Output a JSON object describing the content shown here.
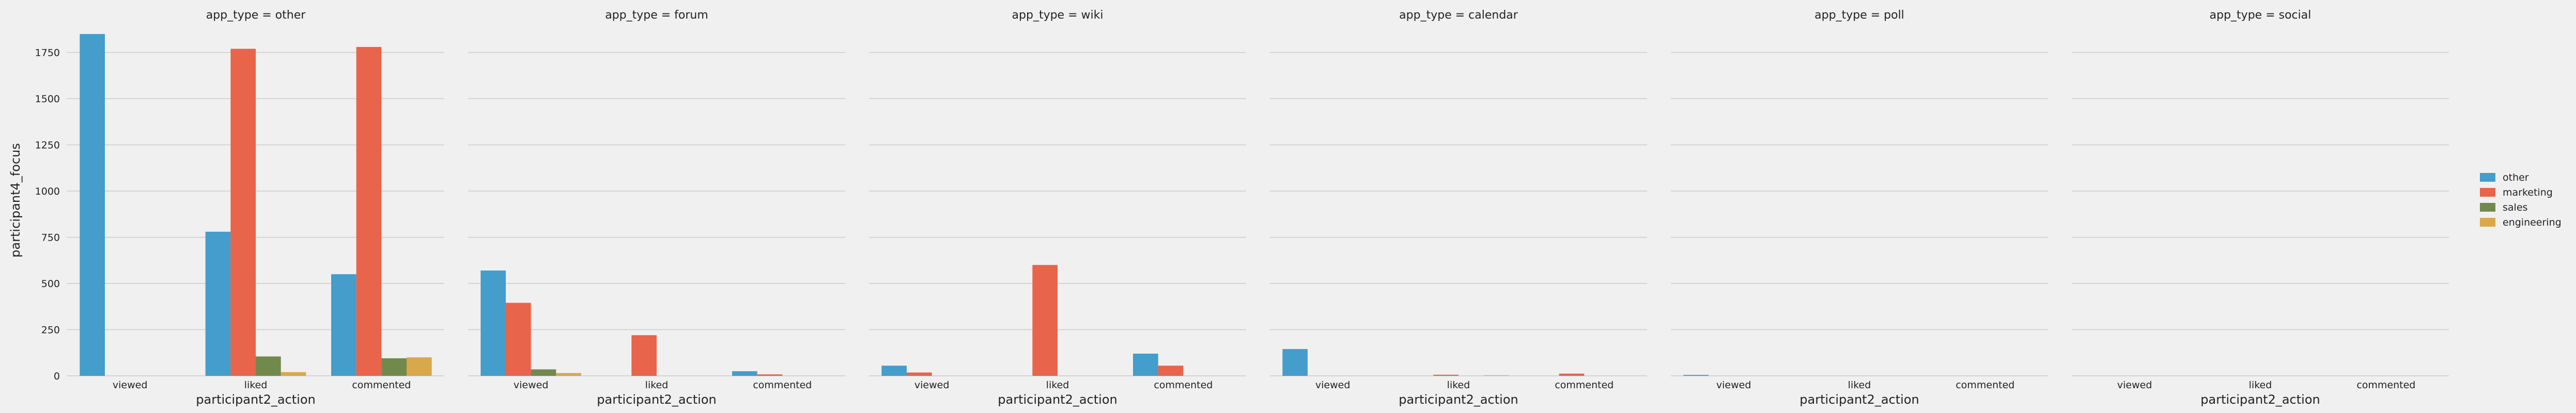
{
  "chart_data": {
    "type": "bar",
    "facet_variable": "app_type",
    "facets": [
      {
        "title": "app_type = other",
        "series": [
          [
            1850,
            780,
            550
          ],
          [
            0,
            1770,
            1780
          ],
          [
            0,
            105,
            95
          ],
          [
            0,
            20,
            100
          ]
        ]
      },
      {
        "title": "app_type = forum",
        "series": [
          [
            570,
            0,
            25
          ],
          [
            395,
            220,
            8
          ],
          [
            35,
            0,
            0
          ],
          [
            15,
            0,
            0
          ]
        ]
      },
      {
        "title": "app_type = wiki",
        "series": [
          [
            55,
            0,
            120
          ],
          [
            18,
            600,
            55
          ],
          [
            0,
            0,
            0
          ],
          [
            0,
            0,
            0
          ]
        ]
      },
      {
        "title": "app_type = calendar",
        "series": [
          [
            145,
            0,
            0
          ],
          [
            0,
            6,
            12
          ],
          [
            0,
            0,
            0
          ],
          [
            0,
            3,
            0
          ]
        ]
      },
      {
        "title": "app_type = poll",
        "series": [
          [
            5,
            0,
            0
          ],
          [
            0,
            0,
            0
          ],
          [
            0,
            0,
            0
          ],
          [
            0,
            0,
            0
          ]
        ]
      },
      {
        "title": "app_type = social",
        "series": [
          [
            0,
            0,
            0
          ],
          [
            0,
            0,
            0
          ],
          [
            0,
            0,
            0
          ],
          [
            0,
            0,
            0
          ]
        ]
      }
    ],
    "categories": [
      "viewed",
      "liked",
      "commented"
    ],
    "series_names": [
      "other",
      "marketing",
      "sales",
      "engineering"
    ],
    "series_colors": [
      "#449dcb",
      "#e8644a",
      "#72894e",
      "#d8a84b"
    ],
    "xlabel": "participant2_action",
    "ylabel": "participant4_focus",
    "ylim": [
      0,
      1900
    ],
    "yticks": [
      0,
      250,
      500,
      750,
      1000,
      1250,
      1500,
      1750
    ],
    "grid": "horizontal",
    "legend_position": "right"
  }
}
